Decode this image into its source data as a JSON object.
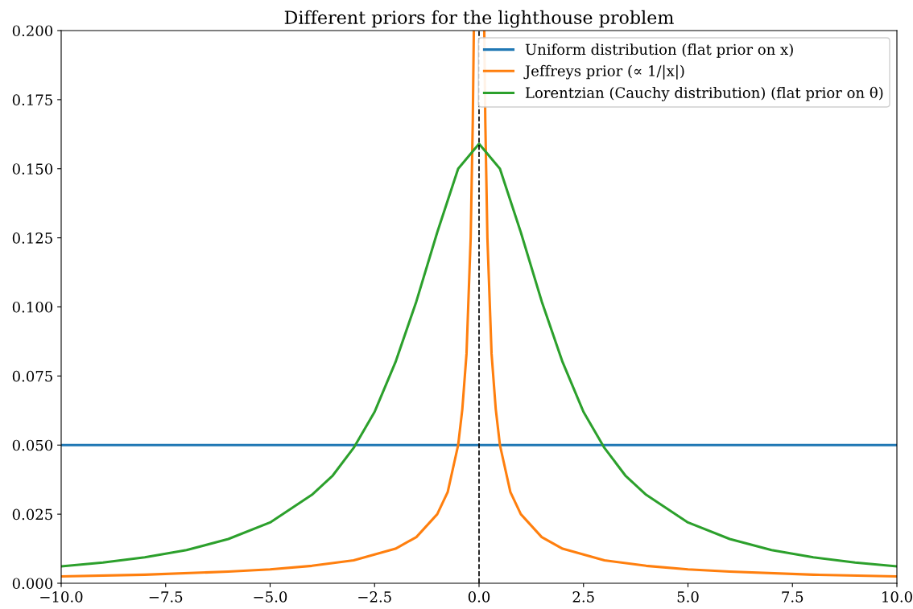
{
  "chart_data": {
    "type": "line",
    "title": "Different priors for the lighthouse problem",
    "series": [
      {
        "name": "Uniform distribution (flat prior on x)",
        "color": "#1f77b4",
        "x": [
          -10,
          10
        ],
        "values": [
          0.05,
          0.05
        ]
      },
      {
        "name": "Jeffreys prior (∝ 1/|x|)",
        "color": "#ff7f0e",
        "x": [
          -10,
          -8,
          -6,
          -5,
          -4,
          -3,
          -2,
          -1.5,
          -1,
          -0.75,
          -0.5,
          -0.4,
          -0.3,
          -0.2,
          -0.15,
          -0.125,
          0,
          0.125,
          0.15,
          0.2,
          0.3,
          0.4,
          0.5,
          0.75,
          1,
          1.5,
          2,
          3,
          4,
          5,
          6,
          8,
          10
        ],
        "values": [
          0.0025,
          0.0031,
          0.0042,
          0.005,
          0.0063,
          0.0083,
          0.0125,
          0.0167,
          0.025,
          0.033,
          0.05,
          0.063,
          0.083,
          0.125,
          0.167,
          0.2,
          null,
          0.2,
          0.167,
          0.125,
          0.083,
          0.063,
          0.05,
          0.033,
          0.025,
          0.0167,
          0.0125,
          0.0083,
          0.0063,
          0.005,
          0.0042,
          0.0031,
          0.0025
        ]
      },
      {
        "name": "Lorentzian (Cauchy distribution) (flat prior on θ)",
        "color": "#2ca02c",
        "x": [
          -10,
          -9,
          -8,
          -7,
          -6,
          -5,
          -4,
          -3.5,
          -3,
          -2.5,
          -2,
          -1.5,
          -1,
          -0.5,
          0,
          0.5,
          1,
          1.5,
          2,
          2.5,
          3,
          3.5,
          4,
          5,
          6,
          7,
          8,
          9,
          10
        ],
        "values": [
          0.0061,
          0.0075,
          0.0094,
          0.012,
          0.016,
          0.022,
          0.032,
          0.039,
          0.049,
          0.062,
          0.08,
          0.102,
          0.127,
          0.15,
          0.159,
          0.15,
          0.127,
          0.102,
          0.08,
          0.062,
          0.049,
          0.039,
          0.032,
          0.022,
          0.016,
          0.012,
          0.0094,
          0.0075,
          0.0061
        ]
      }
    ],
    "ref_lines": [
      {
        "axis": "x",
        "value": 0,
        "color": "#000000",
        "line_style": "dashed"
      }
    ],
    "xlim": [
      -10,
      10
    ],
    "xticks": [
      {
        "value": -10,
        "label": "−10.0"
      },
      {
        "value": -7.5,
        "label": "−7.5"
      },
      {
        "value": -5,
        "label": "−5.0"
      },
      {
        "value": -2.5,
        "label": "−2.5"
      },
      {
        "value": 0,
        "label": "0.0"
      },
      {
        "value": 2.5,
        "label": "2.5"
      },
      {
        "value": 5,
        "label": "5.0"
      },
      {
        "value": 7.5,
        "label": "7.5"
      },
      {
        "value": 10,
        "label": "10.0"
      }
    ],
    "ylim": [
      0,
      0.2
    ],
    "yticks": [
      {
        "value": 0,
        "label": "0.000"
      },
      {
        "value": 0.025,
        "label": "0.025"
      },
      {
        "value": 0.05,
        "label": "0.050"
      },
      {
        "value": 0.075,
        "label": "0.075"
      },
      {
        "value": 0.1,
        "label": "0.100"
      },
      {
        "value": 0.125,
        "label": "0.125"
      },
      {
        "value": 0.15,
        "label": "0.150"
      },
      {
        "value": 0.175,
        "label": "0.175"
      },
      {
        "value": 0.2,
        "label": "0.200"
      }
    ],
    "grid": false,
    "legend": "top right",
    "marker": "none",
    "line_style": "solid"
  }
}
